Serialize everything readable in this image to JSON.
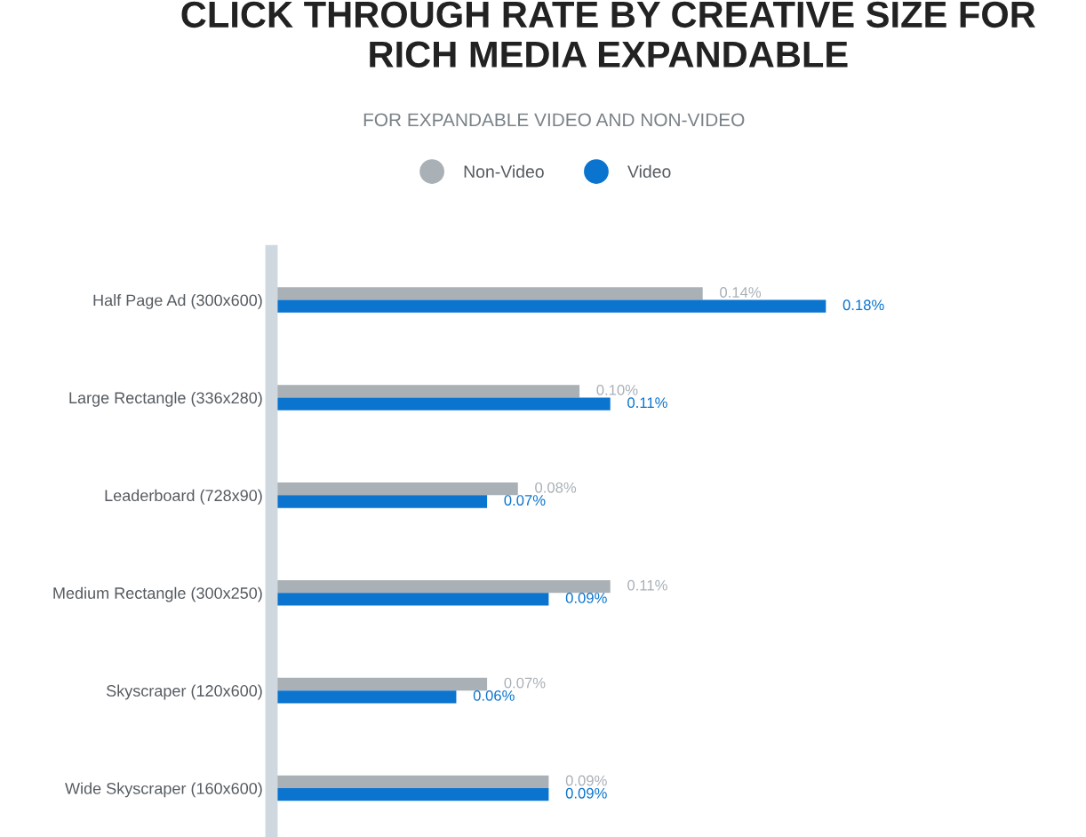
{
  "chart_data": {
    "type": "bar",
    "orientation": "horizontal",
    "title": "CLICK THROUGH RATE BY CREATIVE SIZE FOR RICH MEDIA EXPANDABLE",
    "subtitle": "FOR EXPANDABLE VIDEO AND NON-VIDEO",
    "categories": [
      "Half Page Ad (300x600)",
      "Large Rectangle (336x280)",
      "Leaderboard (728x90)",
      "Medium Rectangle (300x250)",
      "Skyscraper (120x600)",
      "Wide Skyscraper (160x600)"
    ],
    "series": [
      {
        "name": "Non-Video",
        "color": "#a9b0b6",
        "values": [
          0.14,
          0.1,
          0.08,
          0.11,
          0.07,
          0.09
        ],
        "value_labels": [
          "0.14%",
          "0.10%",
          "0.08%",
          "0.11%",
          "0.07%",
          "0.09%"
        ]
      },
      {
        "name": "Video",
        "color": "#0a74cf",
        "values": [
          0.18,
          0.11,
          0.07,
          0.09,
          0.06,
          0.09
        ],
        "value_labels": [
          "0.18%",
          "0.11%",
          "0.07%",
          "0.09%",
          "0.06%",
          "0.09%"
        ]
      }
    ],
    "legend": "top",
    "grid": false
  }
}
